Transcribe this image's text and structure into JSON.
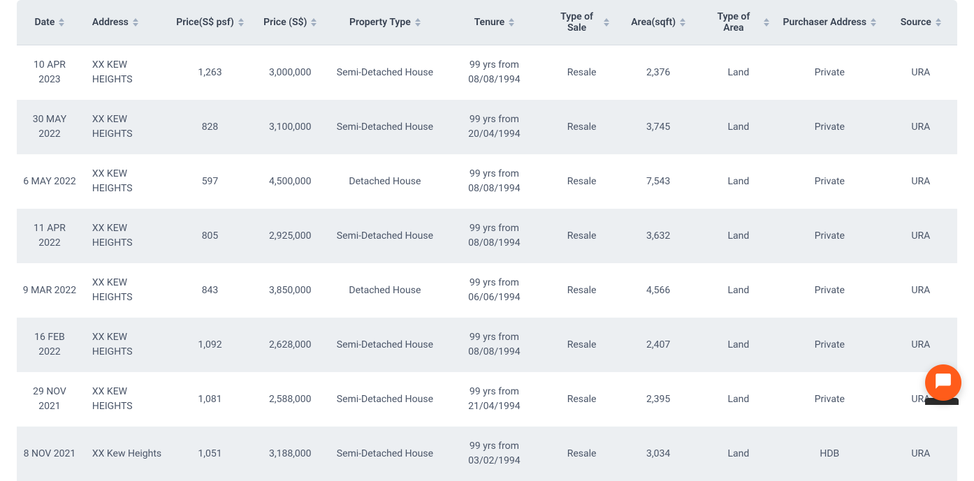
{
  "colors": {
    "header_bg": "#e9edf0",
    "row_alt_bg": "#eceff2",
    "row_bg": "#ffffff",
    "text_header": "#374151",
    "text_body": "#4a5568",
    "sort_icon": "#a0aec0",
    "fab_bg": "#ff5c1a",
    "fab_icon": "#ffffff"
  },
  "columns": [
    {
      "key": "date",
      "label": "Date",
      "align": "center",
      "sortable": true
    },
    {
      "key": "address",
      "label": "Address",
      "align": "left",
      "sortable": true
    },
    {
      "key": "psf",
      "label": "Price(S$ psf)",
      "align": "center",
      "sortable": true
    },
    {
      "key": "price",
      "label": "Price (S$)",
      "align": "center",
      "sortable": true
    },
    {
      "key": "ptype",
      "label": "Property Type",
      "align": "center",
      "sortable": true
    },
    {
      "key": "tenure",
      "label": "Tenure",
      "align": "center",
      "sortable": true
    },
    {
      "key": "sale",
      "label": "Type of Sale",
      "align": "center",
      "sortable": true
    },
    {
      "key": "area",
      "label": "Area(sqft)",
      "align": "center",
      "sortable": true
    },
    {
      "key": "areatype",
      "label": "Type of Area",
      "align": "center",
      "sortable": true
    },
    {
      "key": "paddr",
      "label": "Purchaser Address",
      "align": "center",
      "sortable": true
    },
    {
      "key": "source",
      "label": "Source",
      "align": "center",
      "sortable": true
    }
  ],
  "rows": [
    {
      "date": "10 APR 2023",
      "address": "XX KEW HEIGHTS",
      "psf": "1,263",
      "price": "3,000,000",
      "ptype": "Semi-Detached House",
      "tenure": "99 yrs from 08/08/1994",
      "sale": "Resale",
      "area": "2,376",
      "areatype": "Land",
      "paddr": "Private",
      "source": "URA"
    },
    {
      "date": "30 MAY 2022",
      "address": "XX KEW HEIGHTS",
      "psf": "828",
      "price": "3,100,000",
      "ptype": "Semi-Detached House",
      "tenure": "99 yrs from 20/04/1994",
      "sale": "Resale",
      "area": "3,745",
      "areatype": "Land",
      "paddr": "Private",
      "source": "URA"
    },
    {
      "date": "6 MAY 2022",
      "address": "XX KEW HEIGHTS",
      "psf": "597",
      "price": "4,500,000",
      "ptype": "Detached House",
      "tenure": "99 yrs from 08/08/1994",
      "sale": "Resale",
      "area": "7,543",
      "areatype": "Land",
      "paddr": "Private",
      "source": "URA"
    },
    {
      "date": "11 APR 2022",
      "address": "XX KEW HEIGHTS",
      "psf": "805",
      "price": "2,925,000",
      "ptype": "Semi-Detached House",
      "tenure": "99 yrs from 08/08/1994",
      "sale": "Resale",
      "area": "3,632",
      "areatype": "Land",
      "paddr": "Private",
      "source": "URA"
    },
    {
      "date": "9 MAR 2022",
      "address": "XX KEW HEIGHTS",
      "psf": "843",
      "price": "3,850,000",
      "ptype": "Detached House",
      "tenure": "99 yrs from 06/06/1994",
      "sale": "Resale",
      "area": "4,566",
      "areatype": "Land",
      "paddr": "Private",
      "source": "URA"
    },
    {
      "date": "16 FEB 2022",
      "address": "XX KEW HEIGHTS",
      "psf": "1,092",
      "price": "2,628,000",
      "ptype": "Semi-Detached House",
      "tenure": "99 yrs from 08/08/1994",
      "sale": "Resale",
      "area": "2,407",
      "areatype": "Land",
      "paddr": "Private",
      "source": "URA"
    },
    {
      "date": "29 NOV 2021",
      "address": "XX KEW HEIGHTS",
      "psf": "1,081",
      "price": "2,588,000",
      "ptype": "Semi-Detached House",
      "tenure": "99 yrs from 21/04/1994",
      "sale": "Resale",
      "area": "2,395",
      "areatype": "Land",
      "paddr": "Private",
      "source": "URA"
    },
    {
      "date": "8 NOV 2021",
      "address": "XX Kew Heights",
      "psf": "1,051",
      "price": "3,188,000",
      "ptype": "Semi-Detached House",
      "tenure": "99 yrs from 03/02/1994",
      "sale": "Resale",
      "area": "3,034",
      "areatype": "Land",
      "paddr": "HDB",
      "source": "URA"
    }
  ]
}
